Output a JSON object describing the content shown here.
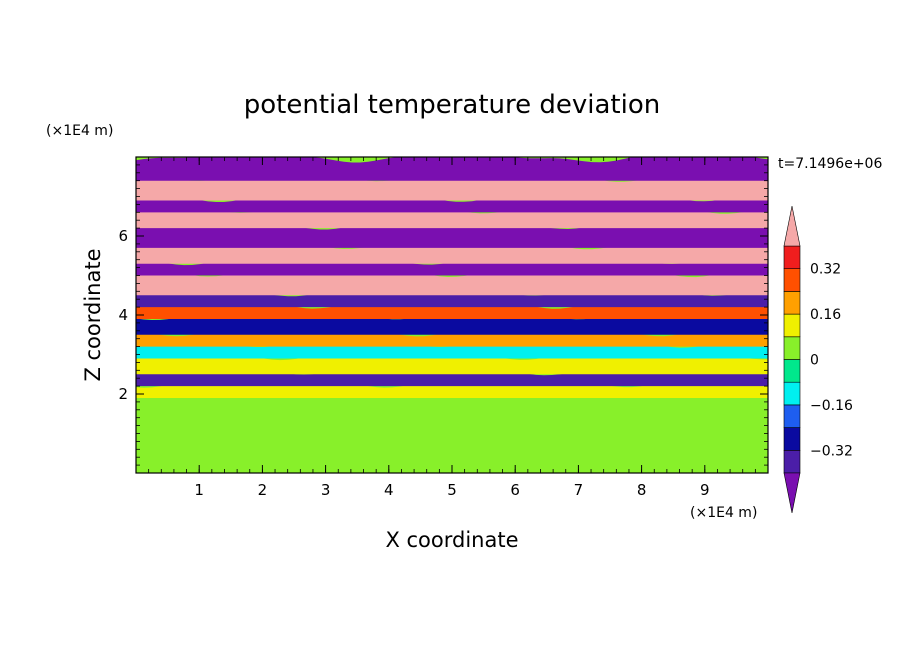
{
  "chart_data": {
    "type": "heatmap",
    "title": "potential temperature deviation",
    "xlabel": "X coordinate",
    "ylabel": "Z coordinate",
    "x_unit": "(×1E4 m)",
    "y_unit": "(×1E4 m)",
    "time_label": "t=7.1496e+06",
    "xlim": [
      0,
      10
    ],
    "ylim": [
      0,
      8
    ],
    "x_ticks": [
      "1",
      "2",
      "3",
      "4",
      "5",
      "6",
      "7",
      "8",
      "9"
    ],
    "y_ticks": [
      "2",
      "4",
      "6"
    ],
    "colorbar": {
      "levels": [
        -0.4,
        -0.32,
        -0.24,
        -0.16,
        -0.08,
        0,
        0.08,
        0.16,
        0.24,
        0.32,
        0.4
      ],
      "tick_labels": [
        "0.32",
        "0.16",
        "0",
        "−0.16",
        "−0.32"
      ],
      "tick_values": [
        0.32,
        0.16,
        0,
        -0.16,
        -0.32
      ],
      "colors": [
        "#7a0fb0",
        "#4b1ea8",
        "#0a0aa0",
        "#1e5ef0",
        "#00f0f0",
        "#00e88c",
        "#88f02a",
        "#f0f000",
        "#ffa000",
        "#ff5000",
        "#f01e1e",
        "#f5a8a8"
      ],
      "extend": "both"
    },
    "bands": [
      {
        "z_from": 7.5,
        "z_to": 8.0,
        "value": -0.45
      },
      {
        "z_from": 7.0,
        "z_to": 7.5,
        "value": 0.45
      },
      {
        "z_from": 6.7,
        "z_to": 7.0,
        "value": -0.45
      },
      {
        "z_from": 6.3,
        "z_to": 6.7,
        "value": 0.45
      },
      {
        "z_from": 5.8,
        "z_to": 6.3,
        "value": -0.45
      },
      {
        "z_from": 5.4,
        "z_to": 5.8,
        "value": 0.45
      },
      {
        "z_from": 5.1,
        "z_to": 5.4,
        "value": -0.45
      },
      {
        "z_from": 4.6,
        "z_to": 5.1,
        "value": 0.45
      },
      {
        "z_from": 4.3,
        "z_to": 4.6,
        "value": -0.35
      },
      {
        "z_from": 4.0,
        "z_to": 4.3,
        "value": 0.3
      },
      {
        "z_from": 3.6,
        "z_to": 4.0,
        "value": -0.3
      },
      {
        "z_from": 3.3,
        "z_to": 3.6,
        "value": 0.2
      },
      {
        "z_from": 3.0,
        "z_to": 3.3,
        "value": -0.14
      },
      {
        "z_from": 2.6,
        "z_to": 3.0,
        "value": 0.1
      },
      {
        "z_from": 2.3,
        "z_to": 2.6,
        "value": -0.35
      },
      {
        "z_from": 2.0,
        "z_to": 2.3,
        "value": 0.1
      },
      {
        "z_from": 0.0,
        "z_to": 2.0,
        "value": 0.04
      }
    ]
  }
}
